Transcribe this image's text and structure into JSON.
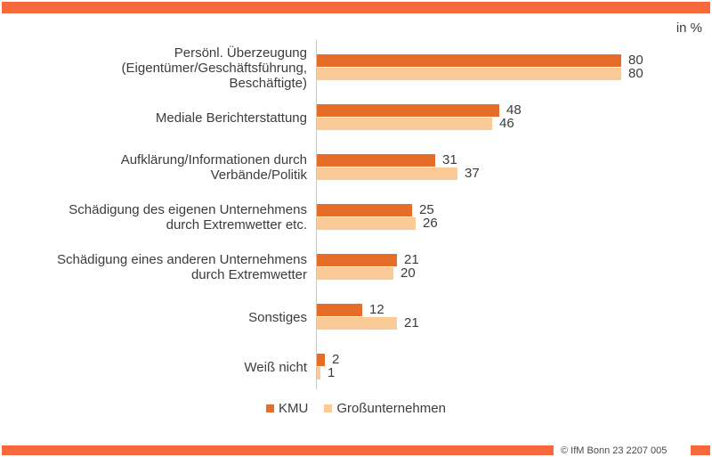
{
  "accent_color": "#F6693C",
  "axis_color": "#C9C9C9",
  "unit_label": "in %",
  "footer_text": "© IfM  Bonn 23 2207 005",
  "legend": [
    {
      "label": "KMU",
      "color": "#E66C2A"
    },
    {
      "label": "Großunternehmen",
      "color": "#FBCB97"
    }
  ],
  "chart_data": {
    "type": "bar",
    "orientation": "horizontal",
    "unit": "percent",
    "title": "",
    "xlabel": "",
    "ylabel": "",
    "xlim": [
      0,
      100
    ],
    "grid": false,
    "legend_position": "bottom",
    "categories": [
      [
        "Persönl. Überzeugung",
        "(Eigentümer/Geschäftsführung,",
        "Beschäftigte)"
      ],
      [
        "Mediale Berichterstattung"
      ],
      [
        "Aufklärung/Informationen durch",
        "Verbände/Politik"
      ],
      [
        "Schädigung des eigenen Unternehmens",
        "durch Extremwetter etc."
      ],
      [
        "Schädigung eines anderen Unternehmens",
        "durch Extremwetter"
      ],
      [
        "Sonstiges"
      ],
      [
        "Weiß nicht"
      ]
    ],
    "series": [
      {
        "name": "KMU",
        "color": "#E66C2A",
        "values": [
          80,
          48,
          31,
          25,
          21,
          12,
          2
        ]
      },
      {
        "name": "Großunternehmen",
        "color": "#FBCB97",
        "values": [
          80,
          46,
          37,
          26,
          20,
          21,
          1
        ]
      }
    ]
  }
}
